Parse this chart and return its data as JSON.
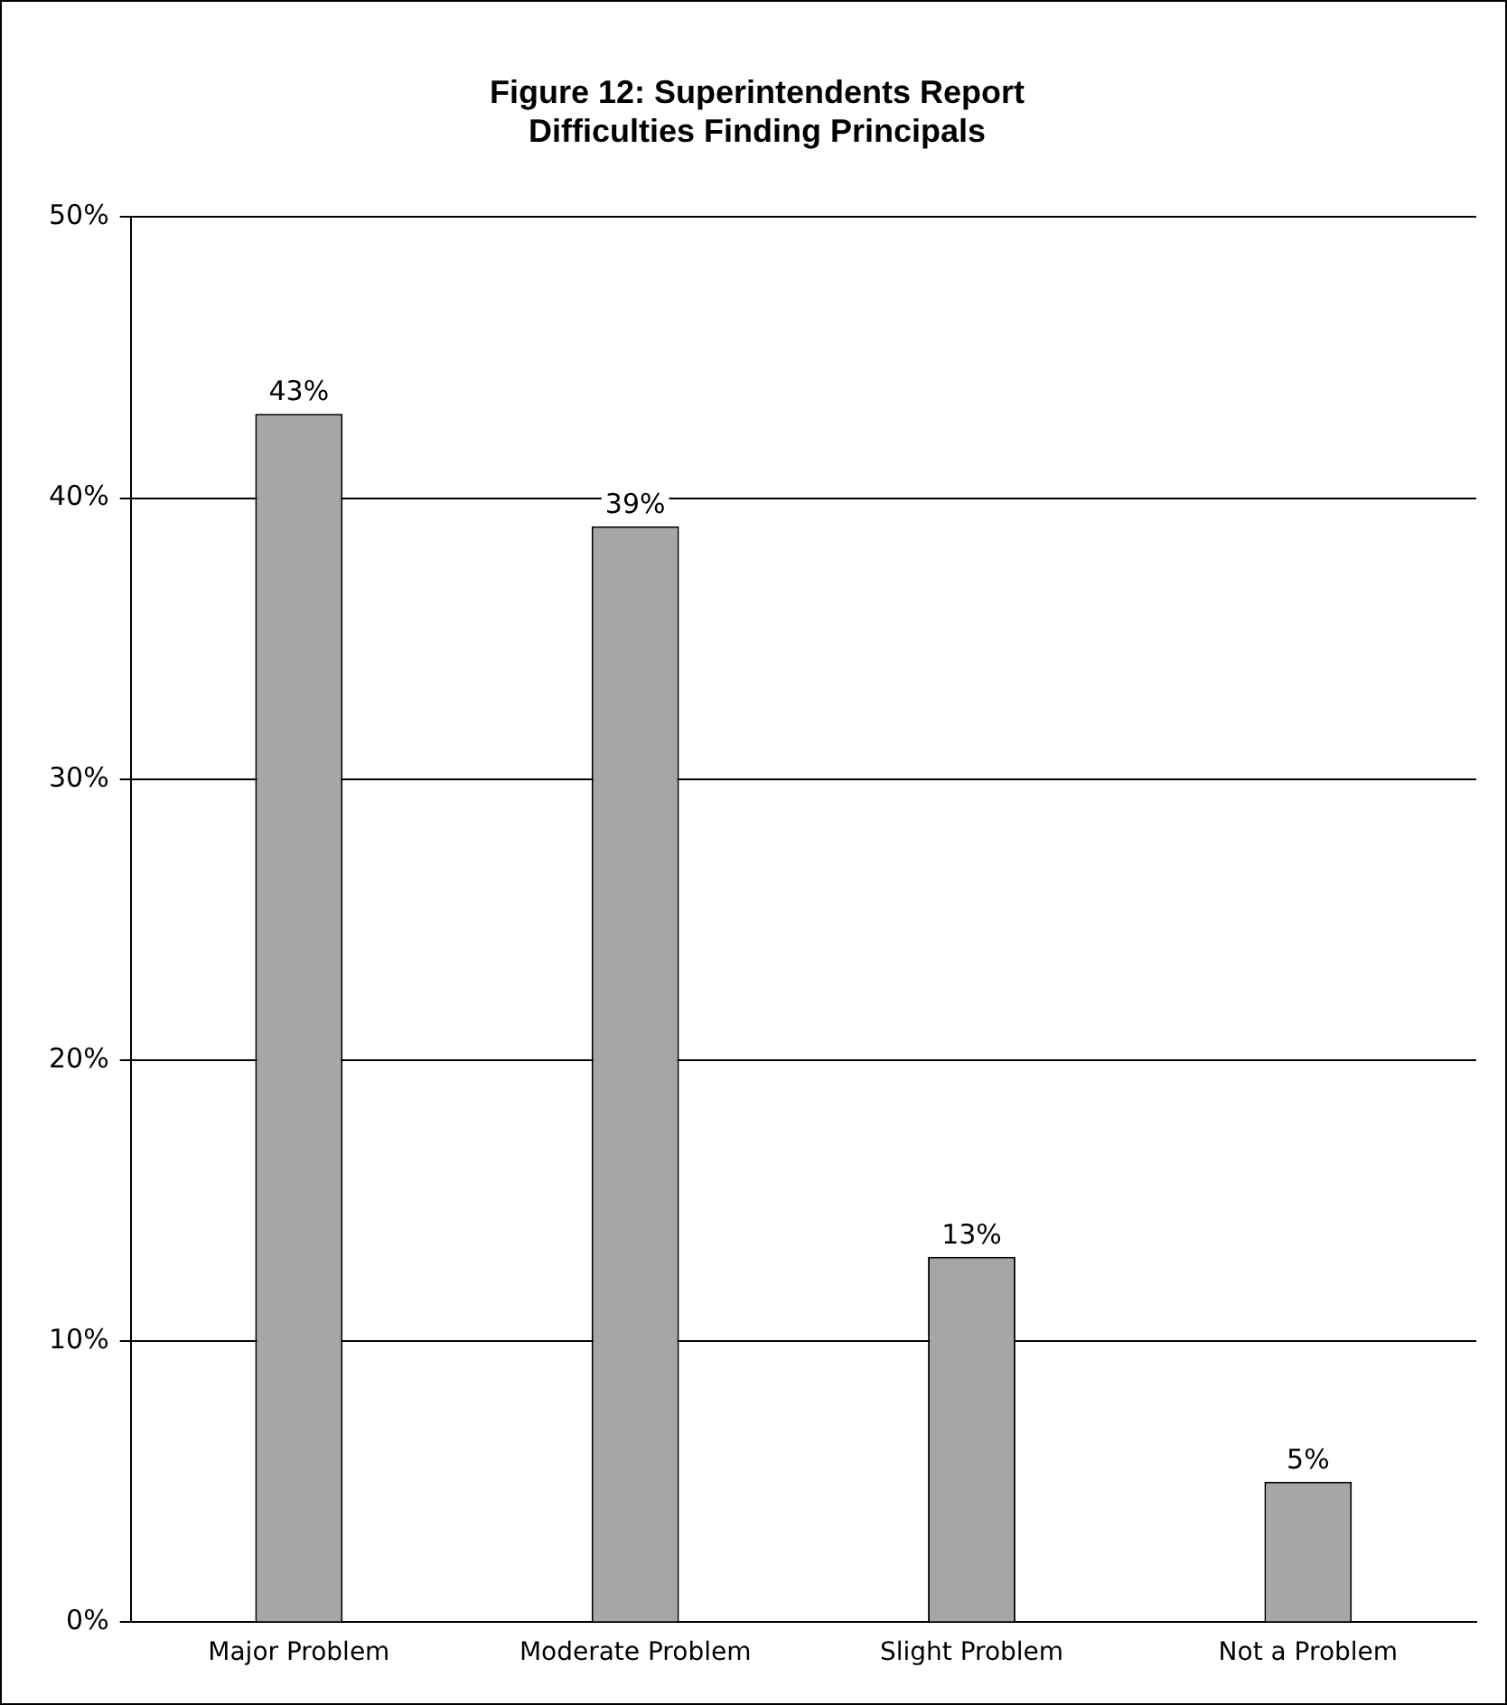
{
  "chart_data": {
    "type": "bar",
    "title": "Figure 12: Superintendents Report\nDifficulties Finding Principals",
    "categories": [
      "Major Problem",
      "Moderate Problem",
      "Slight Problem",
      "Not a Problem"
    ],
    "values": [
      43,
      39,
      13,
      5
    ],
    "color": "#a6a6a6",
    "value_labels": [
      "43%",
      "39%",
      "13%",
      "5%"
    ],
    "ylim": [
      0,
      50
    ],
    "yticks": [
      {
        "value": 0,
        "label": "0%"
      },
      {
        "value": 10,
        "label": "10%"
      },
      {
        "value": 20,
        "label": "20%"
      },
      {
        "value": 30,
        "label": "30%"
      },
      {
        "value": 40,
        "label": "40%"
      },
      {
        "value": 50,
        "label": "50%"
      }
    ],
    "grid": "y",
    "legend": false
  }
}
